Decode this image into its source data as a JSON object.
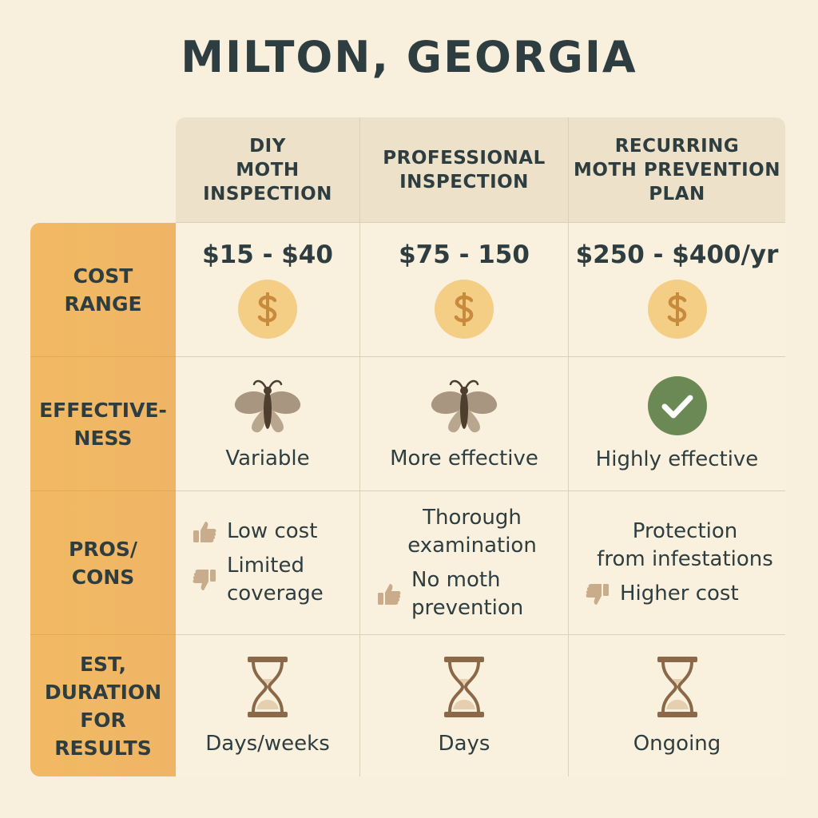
{
  "title": "MILTON, GEORGIA",
  "columns": [
    "DIY\nMOTH\nINSPECTION",
    "PROFESSIONAL\nINSPECTION",
    "RECURRING\nMOTH PREVENTION\nPLAN"
  ],
  "rows": [
    {
      "label": "COST\nRANGE",
      "cells": [
        "$15 - $40",
        "$75 - 150",
        "$250 - $400/yr"
      ]
    },
    {
      "label": "EFFECTIVE-\nNESS",
      "cells": [
        "Variable",
        "More effective",
        "Highly effective"
      ]
    },
    {
      "label": "PROS/\nCONS",
      "cells": [
        [
          "Low cost",
          "Limited\ncoverage"
        ],
        [
          "Thorough\nexamination",
          "No moth\nprevention"
        ],
        [
          "Protection\nfrom infestations",
          "Higher cost"
        ]
      ]
    },
    {
      "label": "EST,\nDURATION\nFOR\nRESULTS",
      "cells": [
        "Days/weeks",
        "Days",
        "Ongoing"
      ]
    }
  ]
}
